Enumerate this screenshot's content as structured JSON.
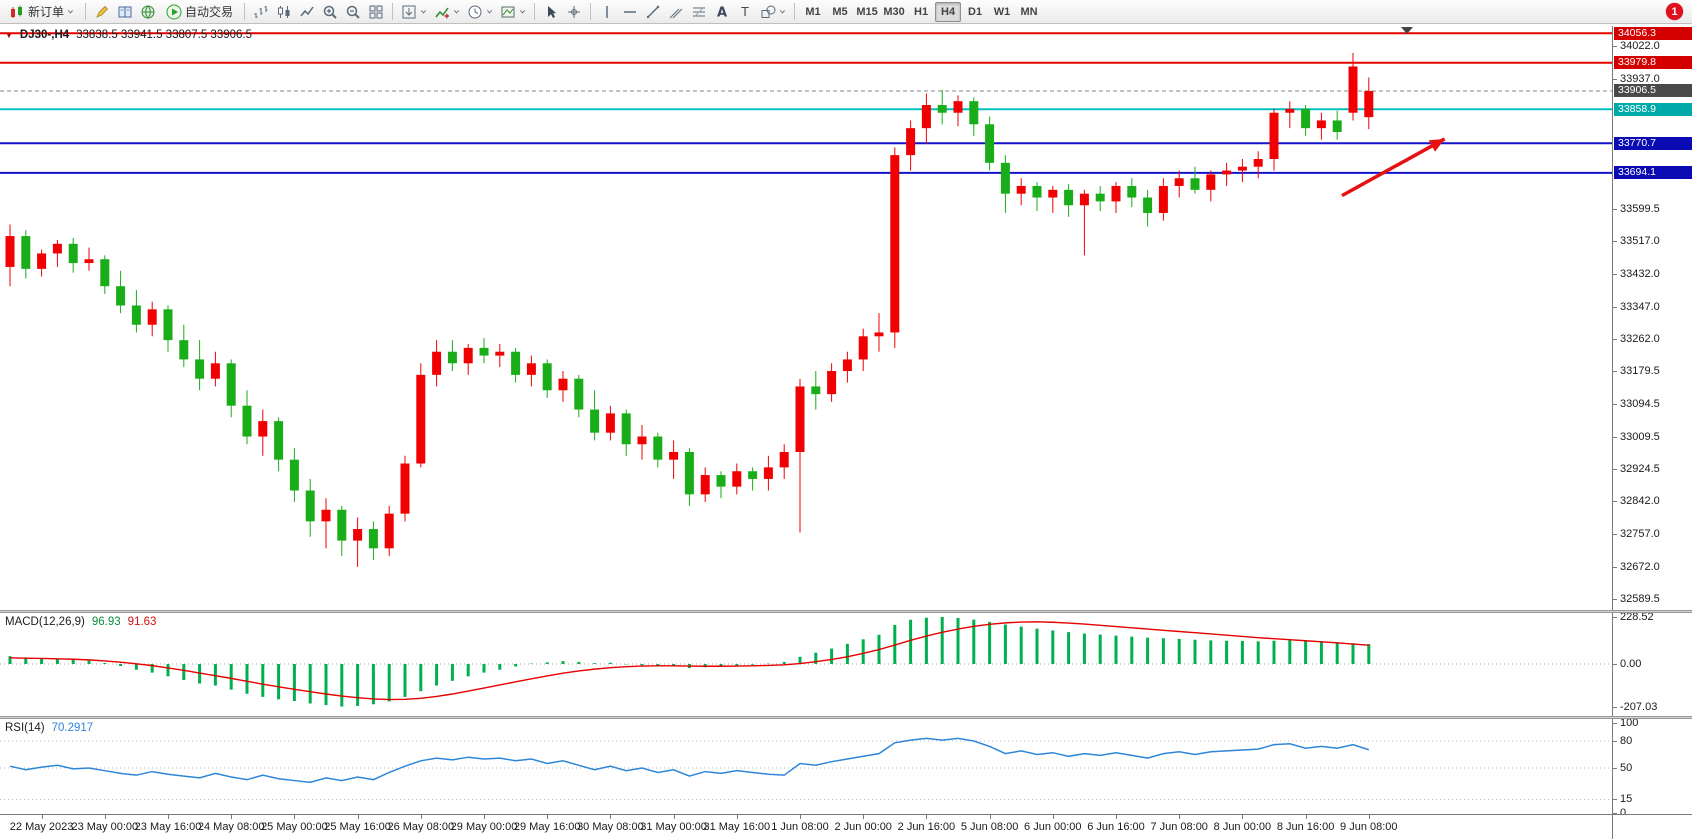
{
  "app": {
    "notification_count": "1"
  },
  "toolbar": {
    "groups": [
      {
        "items": [
          {
            "name": "new-order",
            "label": "新订单",
            "icon": "new-order",
            "dropdown": true
          }
        ]
      },
      {
        "items": [
          {
            "name": "metaeditor",
            "icon": "pencil"
          },
          {
            "name": "market-watch",
            "icon": "book"
          },
          {
            "name": "signals",
            "icon": "globe"
          },
          {
            "name": "autotrade",
            "label": "自动交易",
            "icon": "play"
          }
        ]
      },
      {
        "items": [
          {
            "name": "bar-chart",
            "icon": "bars"
          },
          {
            "name": "candle-chart",
            "icon": "candles"
          },
          {
            "name": "line-chart",
            "icon": "line"
          },
          {
            "name": "zoom-in",
            "icon": "zoom-in"
          },
          {
            "name": "zoom-out",
            "icon": "zoom-out"
          },
          {
            "name": "tile-windows",
            "icon": "tile"
          }
        ]
      },
      {
        "items": [
          {
            "name": "auto-arrange",
            "icon": "arrange",
            "dropdown": true
          },
          {
            "name": "indicators",
            "icon": "indicator",
            "dropdown": true
          },
          {
            "name": "periods",
            "icon": "clock",
            "dropdown": true
          },
          {
            "name": "templates",
            "icon": "template",
            "dropdown": true
          }
        ]
      },
      {
        "items": [
          {
            "name": "cursor",
            "icon": "cursor"
          },
          {
            "name": "crosshair",
            "icon": "crosshair"
          }
        ]
      },
      {
        "items": [
          {
            "name": "vertical-line",
            "icon": "vline"
          },
          {
            "name": "horizontal-line",
            "icon": "hline"
          },
          {
            "name": "trendline",
            "icon": "tline"
          },
          {
            "name": "channel",
            "icon": "channel"
          },
          {
            "name": "fibonacci",
            "icon": "fibo"
          },
          {
            "name": "text",
            "icon": "text"
          },
          {
            "name": "text-label",
            "icon": "label"
          },
          {
            "name": "shapes",
            "icon": "shapes",
            "dropdown": true
          }
        ]
      }
    ],
    "timeframes": [
      "M1",
      "M5",
      "M15",
      "M30",
      "H1",
      "H4",
      "D1",
      "W1",
      "MN"
    ],
    "active_timeframe": "H4"
  },
  "main_chart": {
    "type": "candlestick",
    "header": {
      "symbol_period": "DJ30-,H4",
      "ohlc": "33838.5 33941.5 33807.5 33906.5"
    },
    "colors": {
      "bull": "#f00000",
      "bear": "#1aad1a"
    },
    "price_axis": {
      "range": {
        "max": 34075,
        "min": 32560
      },
      "labels": [
        34022.0,
        33937.0,
        33599.5,
        33517.0,
        33432.0,
        33347.0,
        33262.0,
        33179.5,
        33094.5,
        33009.5,
        32924.5,
        32842.0,
        32757.0,
        32672.0,
        32589.5
      ]
    },
    "hlines": [
      {
        "price": 34056.3,
        "color": "#e60000",
        "width": 2,
        "box_color": "#d40000"
      },
      {
        "price": 33979.8,
        "color": "#e60000",
        "width": 2,
        "box_color": "#d40000"
      },
      {
        "price": 33906.5,
        "color": "#8a8a8a",
        "width": 1,
        "box_color": "#4a4a4a",
        "dash": true,
        "role": "current-price"
      },
      {
        "price": 33858.9,
        "color": "#00c0c0",
        "width": 2,
        "box_color": "#00aaaa"
      },
      {
        "price": 33770.7,
        "color": "#1414cc",
        "width": 2,
        "box_color": "#0b0bb4"
      },
      {
        "price": 33694.1,
        "color": "#1414cc",
        "width": 2,
        "box_color": "#0b0bb4"
      }
    ],
    "candles": [
      [
        33450,
        33560,
        33400,
        33530
      ],
      [
        33530,
        33545,
        33420,
        33445
      ],
      [
        33445,
        33495,
        33425,
        33485
      ],
      [
        33485,
        33520,
        33450,
        33510
      ],
      [
        33510,
        33525,
        33435,
        33460
      ],
      [
        33460,
        33500,
        33440,
        33470
      ],
      [
        33470,
        33480,
        33380,
        33400
      ],
      [
        33400,
        33440,
        33330,
        33350
      ],
      [
        33350,
        33390,
        33280,
        33300
      ],
      [
        33300,
        33360,
        33270,
        33340
      ],
      [
        33340,
        33350,
        33230,
        33260
      ],
      [
        33260,
        33300,
        33190,
        33210
      ],
      [
        33210,
        33260,
        33130,
        33160
      ],
      [
        33160,
        33230,
        33140,
        33200
      ],
      [
        33200,
        33210,
        33060,
        33090
      ],
      [
        33090,
        33130,
        32990,
        33010
      ],
      [
        33010,
        33080,
        32960,
        33050
      ],
      [
        33050,
        33060,
        32920,
        32950
      ],
      [
        32950,
        32980,
        32840,
        32870
      ],
      [
        32870,
        32900,
        32750,
        32790
      ],
      [
        32790,
        32850,
        32720,
        32820
      ],
      [
        32820,
        32830,
        32700,
        32740
      ],
      [
        32740,
        32800,
        32672,
        32770
      ],
      [
        32770,
        32790,
        32690,
        32720
      ],
      [
        32720,
        32830,
        32700,
        32810
      ],
      [
        32810,
        32960,
        32790,
        32940
      ],
      [
        32940,
        33200,
        32930,
        33170
      ],
      [
        33170,
        33260,
        33140,
        33230
      ],
      [
        33230,
        33260,
        33180,
        33200
      ],
      [
        33200,
        33250,
        33170,
        33240
      ],
      [
        33240,
        33265,
        33200,
        33220
      ],
      [
        33220,
        33250,
        33190,
        33230
      ],
      [
        33230,
        33240,
        33150,
        33170
      ],
      [
        33170,
        33220,
        33140,
        33200
      ],
      [
        33200,
        33210,
        33110,
        33130
      ],
      [
        33130,
        33180,
        33100,
        33160
      ],
      [
        33160,
        33170,
        33060,
        33080
      ],
      [
        33080,
        33130,
        33000,
        33020
      ],
      [
        33020,
        33090,
        33000,
        33070
      ],
      [
        33070,
        33080,
        32960,
        32990
      ],
      [
        32990,
        33040,
        32950,
        33010
      ],
      [
        33010,
        33020,
        32930,
        32950
      ],
      [
        32950,
        33000,
        32900,
        32970
      ],
      [
        32970,
        32980,
        32830,
        32860
      ],
      [
        32860,
        32930,
        32840,
        32910
      ],
      [
        32910,
        32920,
        32850,
        32880
      ],
      [
        32880,
        32940,
        32860,
        32920
      ],
      [
        32920,
        32930,
        32870,
        32900
      ],
      [
        32900,
        32960,
        32870,
        32930
      ],
      [
        32930,
        32990,
        32900,
        32970
      ],
      [
        32970,
        33160,
        32761,
        33140
      ],
      [
        33140,
        33180,
        33080,
        33120
      ],
      [
        33120,
        33200,
        33100,
        33180
      ],
      [
        33180,
        33230,
        33150,
        33210
      ],
      [
        33210,
        33290,
        33180,
        33270
      ],
      [
        33270,
        33330,
        33230,
        33280
      ],
      [
        33280,
        33760,
        33240,
        33740
      ],
      [
        33740,
        33830,
        33700,
        33810
      ],
      [
        33810,
        33900,
        33770,
        33870
      ],
      [
        33870,
        33910,
        33820,
        33850
      ],
      [
        33850,
        33895,
        33815,
        33880
      ],
      [
        33880,
        33890,
        33790,
        33820
      ],
      [
        33820,
        33840,
        33700,
        33720
      ],
      [
        33720,
        33740,
        33590,
        33640
      ],
      [
        33640,
        33680,
        33610,
        33660
      ],
      [
        33660,
        33670,
        33595,
        33630
      ],
      [
        33630,
        33660,
        33590,
        33650
      ],
      [
        33650,
        33665,
        33580,
        33610
      ],
      [
        33610,
        33650,
        33480,
        33640
      ],
      [
        33640,
        33660,
        33595,
        33620
      ],
      [
        33620,
        33670,
        33590,
        33660
      ],
      [
        33660,
        33680,
        33605,
        33630
      ],
      [
        33630,
        33650,
        33555,
        33590
      ],
      [
        33590,
        33680,
        33570,
        33660
      ],
      [
        33660,
        33700,
        33630,
        33680
      ],
      [
        33680,
        33710,
        33640,
        33650
      ],
      [
        33650,
        33700,
        33620,
        33690
      ],
      [
        33690,
        33720,
        33660,
        33700
      ],
      [
        33700,
        33730,
        33670,
        33710
      ],
      [
        33710,
        33750,
        33680,
        33730
      ],
      [
        33730,
        33860,
        33700,
        33850
      ],
      [
        33850,
        33880,
        33810,
        33860
      ],
      [
        33860,
        33870,
        33790,
        33810
      ],
      [
        33810,
        33850,
        33780,
        33830
      ],
      [
        33830,
        33855,
        33780,
        33800
      ],
      [
        33850,
        34005,
        33830,
        33970
      ],
      [
        33838.5,
        33941.5,
        33807.5,
        33906.5
      ]
    ],
    "arrow": {
      "from": [
        84.3,
        33635
      ],
      "to": [
        90.8,
        33782
      ],
      "color": "#e81010"
    },
    "time_axis": {
      "first_label_candle": 2,
      "candles_per_label": 4,
      "labels": [
        "22 May 2023",
        "23 May 00:00",
        "23 May 16:00",
        "24 May 08:00",
        "25 May 00:00",
        "25 May 16:00",
        "26 May 08:00",
        "29 May 00:00",
        "29 May 16:00",
        "30 May 08:00",
        "31 May 00:00",
        "31 May 16:00",
        "1 Jun 08:00",
        "2 Jun 00:00",
        "2 Jun 16:00",
        "5 Jun 08:00",
        "6 Jun 00:00",
        "6 Jun 16:00",
        "7 Jun 08:00",
        "8 Jun 00:00",
        "8 Jun 16:00",
        "9 Jun 08:00"
      ]
    }
  },
  "macd": {
    "header": {
      "name": "MACD(12,26,9)",
      "main_value": "96.93",
      "signal_value": "91.63"
    },
    "colors": {
      "histogram": "#00b050",
      "signal": "#e60000"
    },
    "range": {
      "max": 248,
      "min": -253
    },
    "scale_labels": [
      228.52,
      0.0,
      -207.03
    ],
    "histogram": [
      38,
      32,
      28,
      25,
      20,
      16,
      5,
      -10,
      -28,
      -42,
      -60,
      -78,
      -95,
      -105,
      -125,
      -145,
      -160,
      -172,
      -180,
      -192,
      -200,
      -207,
      -204,
      -196,
      -182,
      -160,
      -132,
      -105,
      -82,
      -60,
      -42,
      -28,
      -12,
      2,
      8,
      14,
      10,
      4,
      6,
      -2,
      -6,
      -10,
      -12,
      -20,
      -16,
      -12,
      -8,
      -4,
      2,
      10,
      35,
      55,
      75,
      98,
      120,
      142,
      190,
      215,
      225,
      228.52,
      224,
      216,
      205,
      192,
      182,
      172,
      163,
      155,
      148,
      143,
      138,
      133,
      128,
      125,
      122,
      118,
      115,
      113,
      112,
      110,
      113,
      116,
      114,
      111,
      106,
      101,
      96.93
    ],
    "signal": [
      30,
      28,
      27,
      25,
      23,
      20,
      15,
      9,
      1,
      -8,
      -19,
      -31,
      -44,
      -57,
      -70,
      -84,
      -98,
      -111,
      -123,
      -135,
      -146,
      -156,
      -164,
      -170,
      -173,
      -172,
      -167,
      -158,
      -146,
      -132,
      -117,
      -102,
      -87,
      -72,
      -58,
      -45,
      -34,
      -25,
      -18,
      -13,
      -10,
      -9,
      -9,
      -10,
      -11,
      -11,
      -10,
      -9,
      -7,
      -4,
      2,
      11,
      22,
      35,
      52,
      70,
      92,
      115,
      136,
      154,
      170,
      183,
      193,
      200,
      204,
      205,
      203,
      199,
      194,
      188,
      182,
      176,
      170,
      164,
      158,
      152,
      146,
      140,
      134,
      128,
      123,
      118,
      113,
      108,
      103,
      97,
      91.63
    ]
  },
  "rsi": {
    "header": {
      "name": "RSI(14)",
      "value": "70.2917"
    },
    "colors": {
      "line": "#2e86d8"
    },
    "range": {
      "max": 104.5,
      "min": -1.2
    },
    "scale_labels": [
      100,
      80,
      50,
      15,
      0
    ],
    "levels": [
      80,
      50,
      15
    ],
    "values": [
      52,
      48,
      51,
      53,
      49,
      50,
      47,
      44,
      42,
      46,
      43,
      41,
      39,
      44,
      40,
      37,
      42,
      38,
      36,
      34,
      39,
      36,
      40,
      37,
      45,
      52,
      58,
      61,
      59,
      62,
      60,
      61,
      58,
      60,
      55,
      58,
      53,
      48,
      52,
      47,
      50,
      45,
      48,
      41,
      46,
      44,
      47,
      45,
      43,
      42,
      55,
      53,
      57,
      60,
      63,
      66,
      78,
      81,
      83,
      81,
      83,
      80,
      74,
      66,
      69,
      65,
      67,
      63,
      66,
      64,
      67,
      64,
      61,
      66,
      68,
      65,
      68,
      69,
      70,
      71,
      76,
      77,
      72,
      74,
      72,
      76,
      70.29
    ]
  }
}
